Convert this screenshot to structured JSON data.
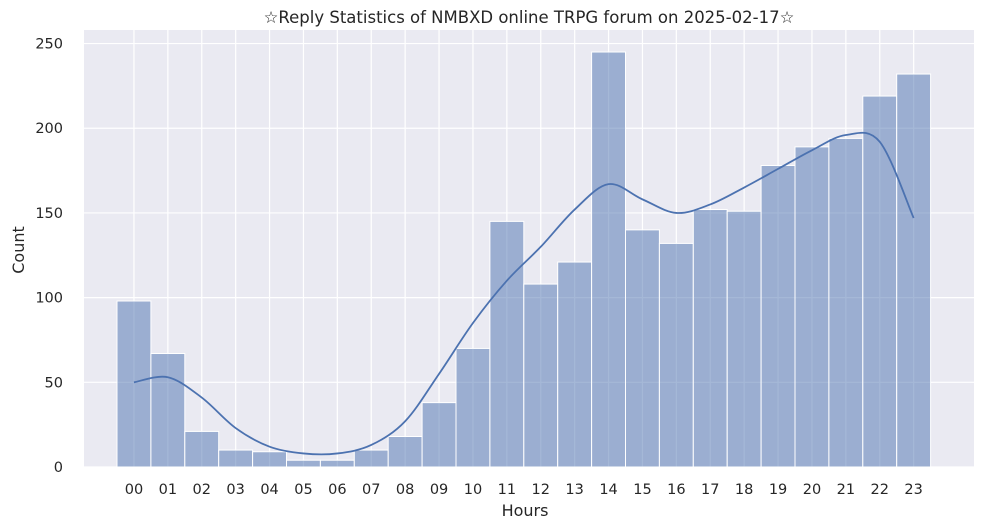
{
  "chart_data": {
    "type": "bar",
    "title": "☆Reply Statistics of NMBXD online TRPG forum on 2025-02-17☆",
    "xlabel": "Hours",
    "ylabel": "Count",
    "categories": [
      "00",
      "01",
      "02",
      "03",
      "04",
      "05",
      "06",
      "07",
      "08",
      "09",
      "10",
      "11",
      "12",
      "13",
      "14",
      "15",
      "16",
      "17",
      "18",
      "19",
      "20",
      "21",
      "22",
      "23"
    ],
    "values": [
      98,
      67,
      21,
      10,
      9,
      4,
      4,
      10,
      18,
      38,
      70,
      145,
      108,
      121,
      245,
      140,
      132,
      152,
      151,
      178,
      189,
      194,
      219,
      232
    ],
    "kde": [
      50,
      53,
      41,
      23,
      12,
      8,
      8,
      13,
      27,
      55,
      85,
      110,
      130,
      152,
      167,
      158,
      150,
      155,
      165,
      176,
      187,
      196,
      192,
      147
    ],
    "yticks": [
      0,
      50,
      100,
      150,
      200,
      250
    ],
    "ylim": [
      0,
      258
    ],
    "grid": true,
    "colors": {
      "bar_fill": "#4c72b0",
      "bar_opacity": 0.5,
      "line": "#4c72b0",
      "background": "#eaeaf2",
      "grid": "#ffffff"
    }
  }
}
